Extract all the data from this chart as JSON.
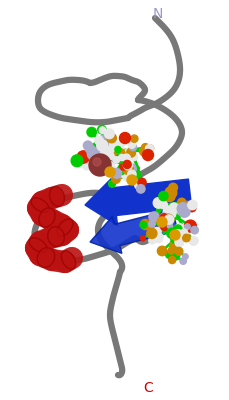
{
  "background_color": "#ffffff",
  "N_label": "N",
  "C_label": "C",
  "N_color": "#9999cc",
  "C_color": "#cc0000",
  "label_fontsize": 10,
  "fig_width": 2.29,
  "fig_height": 4.0,
  "dpi": 100,
  "backbone_color": "#787878",
  "backbone_linewidth": 4.5,
  "sheet_color": "#1133cc",
  "helix_color": "#bb1111",
  "atom_green": "#00cc00",
  "atom_white": "#e8e8e8",
  "atom_red": "#dd2200",
  "atom_blue": "#9999bb",
  "atom_lavender": "#aaaacc",
  "atom_yellow": "#cc8800",
  "atom_darkred": "#883333",
  "atom_orange": "#dd9900"
}
